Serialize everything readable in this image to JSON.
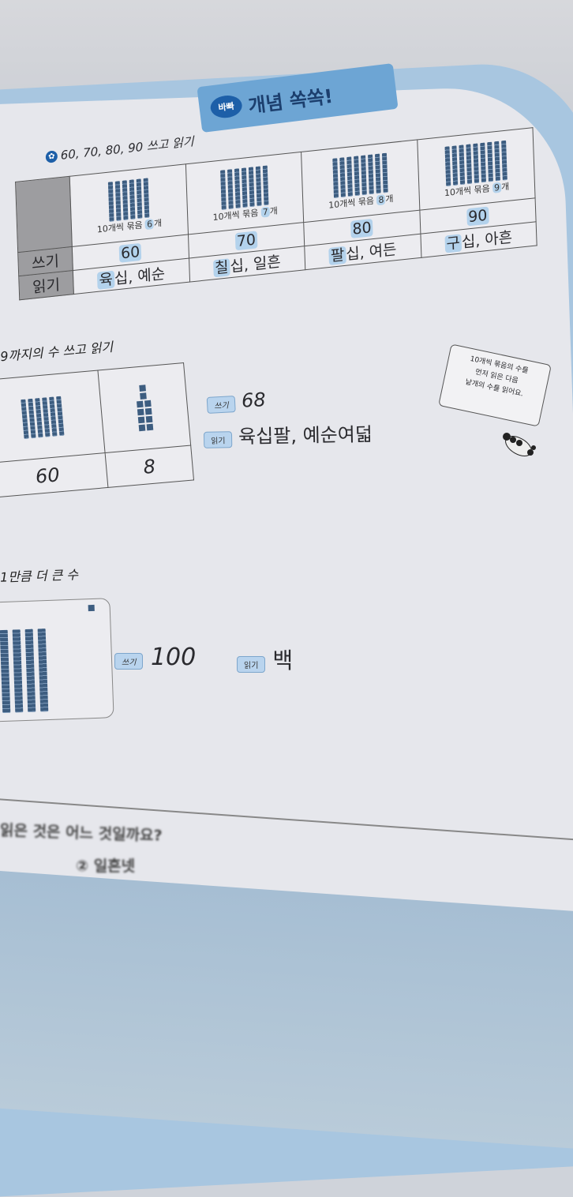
{
  "header": {
    "badge": "바빠",
    "title": "개념 쏙쏙!"
  },
  "section1": {
    "title": "60, 70, 80, 90 쓰고 읽기",
    "underline": "쓰고",
    "row_labels": {
      "write": "쓰기",
      "read": "읽기"
    },
    "columns": [
      {
        "bundles": 6,
        "caption_pre": "10개씩 묶음 ",
        "caption_num": "6",
        "caption_post": "개",
        "write": "60",
        "read_hl": "육",
        "read_rest": "십, 예순"
      },
      {
        "bundles": 7,
        "caption_pre": "10개씩 묶음 ",
        "caption_num": "7",
        "caption_post": "개",
        "write": "70",
        "read_hl": "칠",
        "read_rest": "십, 일흔"
      },
      {
        "bundles": 8,
        "caption_pre": "10개씩 묶음 ",
        "caption_num": "8",
        "caption_post": "개",
        "write": "80",
        "read_hl": "팔",
        "read_rest": "십, 여든"
      },
      {
        "bundles": 9,
        "caption_pre": "10개씩 묶음 ",
        "caption_num": "9",
        "caption_post": "개",
        "write": "90",
        "read_hl": "구",
        "read_rest": "십, 아흔"
      }
    ]
  },
  "section2": {
    "title": "9까지의 수 쓰고 읽기",
    "tens_value": "60",
    "ones_value": "8",
    "write_label": "쓰기",
    "write_value": "68",
    "read_label": "읽기",
    "read_value": "육십팔, 예순여덟",
    "bubble": [
      "10개씩 묶음의 수를",
      "먼저 읽은 다음",
      "낱개의 수를 읽어요."
    ]
  },
  "section3": {
    "title": "1만큼 더 큰 수",
    "write_label": "쓰기",
    "write_value": "100",
    "read_label": "읽기",
    "read_value": "백"
  },
  "question": {
    "text": "읽은 것은 어느 것일까요?",
    "option": "② 일흔넷"
  },
  "colors": {
    "accent_blue": "#6da5d4",
    "badge_blue": "#1d5fa8",
    "highlight": "#b3d2ec",
    "cover": "#a8c6e0"
  }
}
